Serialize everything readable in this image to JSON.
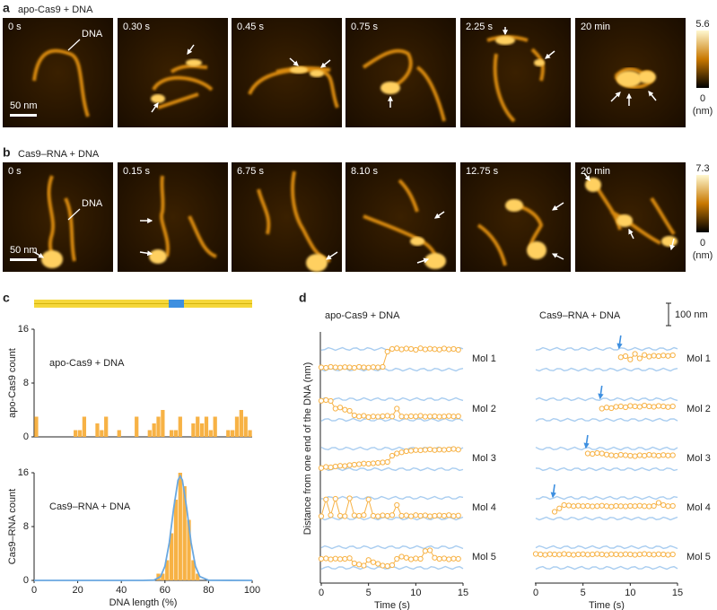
{
  "panel_a": {
    "label": "a",
    "title": "apo-Cas9 + DNA",
    "frames": [
      "0 s",
      "0.30 s",
      "0.45 s",
      "0.75 s",
      "2.25 s",
      "20 min"
    ],
    "dna_label": "DNA",
    "scale_label": "50 nm",
    "colorbar": {
      "range": [
        0,
        5.6
      ],
      "unit": "(nm)"
    }
  },
  "panel_b": {
    "label": "b",
    "title": "Cas9–RNA + DNA",
    "frames": [
      "0 s",
      "0.15 s",
      "6.75 s",
      "8.10 s",
      "12.75 s",
      "20 min"
    ],
    "dna_label": "DNA",
    "scale_label": "50 nm",
    "colorbar": {
      "range": [
        0,
        7.3
      ],
      "unit": "(nm)"
    }
  },
  "panel_c": {
    "label": "c"
  },
  "panel_d": {
    "label": "d",
    "scale_bar": {
      "value": 100,
      "label": "100 nm"
    }
  },
  "chart_data": [
    {
      "type": "histogram",
      "annotation": "apo-Cas9 + DNA",
      "ylabel": "apo-Cas9 count",
      "color": "#f7b245",
      "xlim": [
        0,
        100
      ],
      "ylim": [
        0,
        16
      ],
      "yticks": [
        0,
        8,
        16
      ],
      "bins": [
        0,
        2,
        4,
        6,
        8,
        10,
        12,
        14,
        16,
        18,
        20,
        22,
        24,
        26,
        28,
        30,
        32,
        34,
        36,
        38,
        40,
        42,
        44,
        46,
        48,
        50,
        52,
        54,
        56,
        58,
        60,
        62,
        64,
        66,
        68,
        70,
        72,
        74,
        76,
        78,
        80,
        82,
        84,
        86,
        88,
        90,
        92,
        94,
        96,
        98,
        100
      ],
      "counts": [
        3,
        0,
        0,
        0,
        0,
        0,
        0,
        0,
        0,
        1,
        1,
        3,
        0,
        0,
        2,
        1,
        3,
        0,
        0,
        1,
        0,
        0,
        0,
        3,
        0,
        0,
        1,
        2,
        3,
        4,
        0,
        1,
        1,
        3,
        0,
        0,
        2,
        3,
        2,
        3,
        1,
        3,
        0,
        0,
        1,
        1,
        3,
        4,
        3,
        1
      ]
    },
    {
      "type": "histogram",
      "annotation": "Cas9–RNA + DNA",
      "ylabel": "Cas9–RNA count",
      "xlabel": "DNA length (%)",
      "color": "#f7b245",
      "xlim": [
        0,
        100
      ],
      "ylim": [
        0,
        16
      ],
      "yticks": [
        0,
        8,
        16
      ],
      "xticks": [
        0,
        20,
        40,
        60,
        80,
        100
      ],
      "bins": [
        56,
        58,
        60,
        62,
        64,
        66,
        68,
        70,
        72,
        74,
        76
      ],
      "counts": [
        1,
        1,
        3,
        7,
        12,
        16,
        14,
        9,
        3,
        1
      ],
      "fit": {
        "color": "#6aa8e0",
        "x": [
          0,
          50,
          55,
          58,
          60,
          62,
          64,
          66,
          67,
          68,
          70,
          72,
          74,
          76,
          80,
          100
        ],
        "y": [
          0,
          0,
          0.04,
          0.57,
          2.1,
          5.6,
          10.7,
          14.9,
          15.5,
          14.9,
          10.7,
          5.6,
          2.1,
          0.57,
          0.02,
          0
        ]
      }
    },
    {
      "type": "trace",
      "title": "apo-Cas9 + DNA",
      "ylabel": "Distance from one end of the DNA (nm)",
      "xlabel": "Time (s)",
      "xlim": [
        0,
        15
      ],
      "xticks": [
        0,
        5,
        10,
        15
      ],
      "x": [
        0,
        0.5,
        1,
        1.5,
        2,
        2.5,
        3,
        3.5,
        4,
        4.5,
        5,
        5.5,
        6,
        6.5,
        7,
        7.5,
        8,
        8.5,
        9,
        9.5,
        10,
        10.5,
        11,
        11.5,
        12,
        12.5,
        13,
        13.5,
        14,
        14.5
      ],
      "series": [
        {
          "name": "Mol 1",
          "color": "#f7b245",
          "values": [
            10,
            8,
            12,
            10,
            9,
            11,
            10,
            8,
            12,
            10,
            9,
            11,
            10,
            12,
            80,
            92,
            95,
            90,
            94,
            92,
            88,
            95,
            90,
            93,
            91,
            89,
            94,
            90,
            92,
            88
          ]
        },
        {
          "name": "Mol 2",
          "color": "#f7b245",
          "values": [
            85,
            88,
            84,
            50,
            55,
            45,
            40,
            20,
            15,
            18,
            12,
            15,
            14,
            16,
            18,
            15,
            50,
            15,
            14,
            16,
            15,
            18,
            14,
            15,
            16,
            14,
            15,
            17,
            15,
            16
          ]
        },
        {
          "name": "Mol 3",
          "color": "#f7b245",
          "values": [
            5,
            10,
            8,
            12,
            15,
            14,
            18,
            20,
            22,
            25,
            24,
            26,
            28,
            30,
            32,
            60,
            70,
            75,
            80,
            82,
            85,
            84,
            86,
            88,
            85,
            87,
            86,
            88,
            90,
            87
          ]
        },
        {
          "name": "Mol 4",
          "color": "#f7b245",
          "values": [
            10,
            85,
            15,
            88,
            12,
            10,
            90,
            14,
            12,
            15,
            85,
            12,
            10,
            14,
            12,
            15,
            60,
            12,
            14,
            10,
            15,
            12,
            14,
            10,
            12,
            14,
            12,
            15,
            11,
            13
          ]
        },
        {
          "name": "Mol 5",
          "color": "#f7b245",
          "values": [
            40,
            42,
            38,
            41,
            39,
            40,
            43,
            20,
            15,
            10,
            35,
            25,
            18,
            10,
            8,
            12,
            40,
            50,
            45,
            38,
            42,
            40,
            75,
            78,
            45,
            40,
            42,
            38,
            41,
            40
          ]
        }
      ]
    },
    {
      "type": "trace",
      "title": "Cas9–RNA + DNA",
      "xlabel": "Time (s)",
      "xlim": [
        0,
        15
      ],
      "xticks": [
        0,
        5,
        10,
        15
      ],
      "x": [
        0,
        0.5,
        1,
        1.5,
        2,
        2.5,
        3,
        3.5,
        4,
        4.5,
        5,
        5.5,
        6,
        6.5,
        7,
        7.5,
        8,
        8.5,
        9,
        9.5,
        10,
        10.5,
        11,
        11.5,
        12,
        12.5,
        13,
        13.5,
        14,
        14.5
      ],
      "series": [
        {
          "name": "Mol 1",
          "color": "#f7b245",
          "values": [
            null,
            null,
            null,
            null,
            null,
            null,
            null,
            null,
            null,
            null,
            null,
            null,
            null,
            null,
            null,
            null,
            null,
            null,
            55,
            60,
            45,
            70,
            50,
            65,
            58,
            62,
            60,
            63,
            61,
            64
          ]
        },
        {
          "name": "Mol 2",
          "color": "#f7b245",
          "values": [
            null,
            null,
            null,
            null,
            null,
            null,
            null,
            null,
            null,
            null,
            null,
            null,
            null,
            null,
            50,
            55,
            52,
            58,
            60,
            56,
            62,
            60,
            58,
            64,
            60,
            58,
            62,
            60,
            57,
            60
          ]
        },
        {
          "name": "Mol 3",
          "color": "#f7b245",
          "values": [
            null,
            null,
            null,
            null,
            null,
            null,
            null,
            null,
            null,
            null,
            null,
            70,
            68,
            72,
            70,
            65,
            62,
            60,
            64,
            62,
            60,
            58,
            62,
            60,
            64,
            62,
            60,
            63,
            61,
            62
          ]
        },
        {
          "name": "Mol 4",
          "color": "#f7b245",
          "values": [
            null,
            null,
            null,
            null,
            30,
            45,
            60,
            58,
            55,
            57,
            55,
            56,
            54,
            55,
            57,
            55,
            53,
            56,
            55,
            54,
            56,
            55,
            57,
            55,
            54,
            56,
            70,
            60,
            55,
            56
          ]
        },
        {
          "name": "Mol 5",
          "color": "#f7b245",
          "values": [
            62,
            60,
            58,
            61,
            60,
            59,
            62,
            60,
            58,
            60,
            61,
            59,
            60,
            62,
            60,
            58,
            61,
            60,
            59,
            61,
            60,
            58,
            60,
            62,
            60,
            59,
            61,
            60,
            58,
            60
          ]
        }
      ]
    }
  ]
}
